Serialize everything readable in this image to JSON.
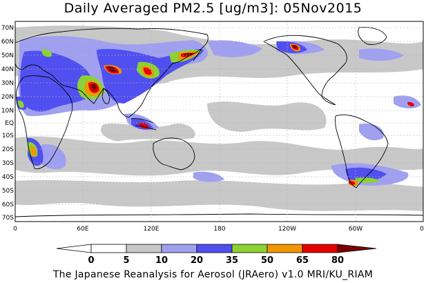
{
  "title": "Daily Averaged PM2.5 [ug/m3]: 05Nov2015",
  "footer": "The Japanese Reanalysis for Aerosol (JRAero) v1.0 MRI/KU_RIAM",
  "lat_labels": [
    "70N",
    "60N",
    "50N",
    "40N",
    "30N",
    "20N",
    "10N",
    "EQ",
    "10S",
    "20S",
    "30S",
    "40S",
    "50S",
    "60S",
    "70S"
  ],
  "lon_labels": [
    "0",
    "60E",
    "120E",
    "180",
    "120W",
    "60W",
    "0"
  ],
  "colorbar": {
    "ticks": [
      "0",
      "5",
      "10",
      "20",
      "35",
      "50",
      "65",
      "80"
    ],
    "colors": [
      "#ffffff",
      "#c8c8c8",
      "#a0a0f0",
      "#5050f0",
      "#8cd232",
      "#f09600",
      "#e60000",
      "#780000"
    ]
  },
  "colors": {
    "land_outline": "#000000",
    "grid": "#b4b4b4",
    "bin_0_5": "#ffffff",
    "bin_5_10": "#c8c8c8",
    "bin_10_20": "#a0a0f0",
    "bin_20_35": "#5050f0",
    "bin_35_50": "#8cd232",
    "bin_50_65": "#f09600",
    "bin_65_80": "#e60000",
    "bin_80_plus": "#780000"
  }
}
